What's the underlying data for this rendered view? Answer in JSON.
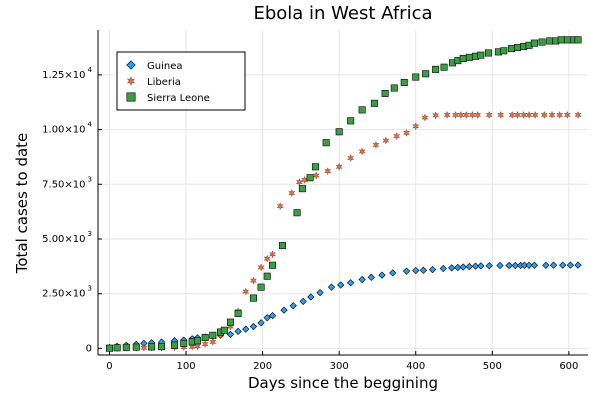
{
  "chart_data": {
    "type": "scatter",
    "title": "Ebola in West Africa",
    "xlabel": "Days since the beggining",
    "ylabel": "Total cases to date",
    "xlim": [
      -15,
      625
    ],
    "ylim": [
      -300,
      14550
    ],
    "xticks": [
      0,
      100,
      200,
      300,
      400,
      500,
      600
    ],
    "xtick_labels": [
      "0",
      "100",
      "200",
      "300",
      "400",
      "500",
      "600"
    ],
    "yticks": [
      0,
      2500,
      5000,
      7500,
      10000,
      12500
    ],
    "ytick_labels": [
      {
        "mant": "0",
        "exp": ""
      },
      {
        "mant": "2.50×10",
        "exp": "3"
      },
      {
        "mant": "5.00×10",
        "exp": "3"
      },
      {
        "mant": "7.50×10",
        "exp": "3"
      },
      {
        "mant": "1.00×10",
        "exp": "4"
      },
      {
        "mant": "1.25×10",
        "exp": "4"
      }
    ],
    "grid": true,
    "legend_position": "top-left",
    "series": [
      {
        "name": "Guinea",
        "marker": "diamond",
        "color": "#2a9df4",
        "points": [
          [
            0,
            40
          ],
          [
            10,
            100
          ],
          [
            22,
            140
          ],
          [
            35,
            190
          ],
          [
            45,
            230
          ],
          [
            55,
            260
          ],
          [
            68,
            290
          ],
          [
            85,
            350
          ],
          [
            97,
            380
          ],
          [
            108,
            440
          ],
          [
            115,
            480
          ],
          [
            125,
            520
          ],
          [
            135,
            560
          ],
          [
            145,
            610
          ],
          [
            158,
            640
          ],
          [
            168,
            780
          ],
          [
            178,
            880
          ],
          [
            188,
            1000
          ],
          [
            198,
            1170
          ],
          [
            206,
            1400
          ],
          [
            213,
            1500
          ],
          [
            228,
            1750
          ],
          [
            240,
            1950
          ],
          [
            253,
            2150
          ],
          [
            263,
            2350
          ],
          [
            275,
            2550
          ],
          [
            290,
            2800
          ],
          [
            302,
            2900
          ],
          [
            315,
            3000
          ],
          [
            330,
            3150
          ],
          [
            342,
            3250
          ],
          [
            356,
            3350
          ],
          [
            370,
            3450
          ],
          [
            388,
            3530
          ],
          [
            400,
            3560
          ],
          [
            410,
            3570
          ],
          [
            422,
            3600
          ],
          [
            436,
            3650
          ],
          [
            447,
            3680
          ],
          [
            455,
            3700
          ],
          [
            462,
            3720
          ],
          [
            470,
            3740
          ],
          [
            478,
            3760
          ],
          [
            485,
            3770
          ],
          [
            496,
            3780
          ],
          [
            510,
            3790
          ],
          [
            522,
            3790
          ],
          [
            530,
            3790
          ],
          [
            537,
            3795
          ],
          [
            542,
            3800
          ],
          [
            548,
            3800
          ],
          [
            555,
            3800
          ],
          [
            570,
            3800
          ],
          [
            580,
            3805
          ],
          [
            592,
            3805
          ],
          [
            602,
            3805
          ],
          [
            612,
            3805
          ]
        ]
      },
      {
        "name": "Liberia",
        "marker": "star",
        "color": "#e26f46",
        "points": [
          [
            0,
            10
          ],
          [
            10,
            15
          ],
          [
            22,
            20
          ],
          [
            35,
            25
          ],
          [
            45,
            30
          ],
          [
            55,
            35
          ],
          [
            68,
            40
          ],
          [
            85,
            50
          ],
          [
            97,
            60
          ],
          [
            108,
            80
          ],
          [
            115,
            100
          ],
          [
            125,
            200
          ],
          [
            135,
            300
          ],
          [
            145,
            600
          ],
          [
            158,
            1000
          ],
          [
            168,
            1700
          ],
          [
            178,
            2600
          ],
          [
            188,
            3100
          ],
          [
            198,
            3700
          ],
          [
            206,
            4100
          ],
          [
            213,
            4300
          ],
          [
            223,
            6500
          ],
          [
            238,
            7100
          ],
          [
            248,
            7600
          ],
          [
            255,
            7700
          ],
          [
            270,
            7900
          ],
          [
            285,
            8100
          ],
          [
            300,
            8300
          ],
          [
            315,
            8700
          ],
          [
            330,
            9000
          ],
          [
            348,
            9300
          ],
          [
            361,
            9500
          ],
          [
            375,
            9700
          ],
          [
            388,
            9850
          ],
          [
            400,
            10150
          ],
          [
            412,
            10550
          ],
          [
            426,
            10650
          ],
          [
            441,
            10670
          ],
          [
            452,
            10670
          ],
          [
            459,
            10670
          ],
          [
            466,
            10670
          ],
          [
            474,
            10670
          ],
          [
            481,
            10670
          ],
          [
            496,
            10670
          ],
          [
            511,
            10670
          ],
          [
            526,
            10670
          ],
          [
            533,
            10670
          ],
          [
            541,
            10670
          ],
          [
            548,
            10670
          ],
          [
            556,
            10670
          ],
          [
            568,
            10670
          ],
          [
            578,
            10670
          ],
          [
            588,
            10670
          ],
          [
            598,
            10670
          ],
          [
            612,
            10670
          ]
        ]
      },
      {
        "name": "Sierra Leone",
        "marker": "square",
        "color": "#3a9e43",
        "points": [
          [
            0,
            10
          ],
          [
            10,
            30
          ],
          [
            22,
            50
          ],
          [
            35,
            60
          ],
          [
            55,
            70
          ],
          [
            68,
            80
          ],
          [
            85,
            150
          ],
          [
            97,
            230
          ],
          [
            108,
            300
          ],
          [
            115,
            350
          ],
          [
            125,
            500
          ],
          [
            135,
            600
          ],
          [
            145,
            750
          ],
          [
            150,
            830
          ],
          [
            158,
            1200
          ],
          [
            168,
            1600
          ],
          [
            188,
            2300
          ],
          [
            198,
            2800
          ],
          [
            206,
            3300
          ],
          [
            213,
            3800
          ],
          [
            226,
            4700
          ],
          [
            245,
            6200
          ],
          [
            252,
            7300
          ],
          [
            262,
            7800
          ],
          [
            269,
            8300
          ],
          [
            283,
            9400
          ],
          [
            300,
            9900
          ],
          [
            315,
            10400
          ],
          [
            330,
            10900
          ],
          [
            346,
            11200
          ],
          [
            360,
            11650
          ],
          [
            372,
            11900
          ],
          [
            385,
            12150
          ],
          [
            400,
            12400
          ],
          [
            413,
            12550
          ],
          [
            426,
            12750
          ],
          [
            437,
            12850
          ],
          [
            448,
            13050
          ],
          [
            455,
            13150
          ],
          [
            462,
            13250
          ],
          [
            470,
            13300
          ],
          [
            478,
            13350
          ],
          [
            485,
            13400
          ],
          [
            495,
            13500
          ],
          [
            508,
            13550
          ],
          [
            515,
            13600
          ],
          [
            525,
            13700
          ],
          [
            533,
            13750
          ],
          [
            541,
            13800
          ],
          [
            548,
            13850
          ],
          [
            555,
            13950
          ],
          [
            565,
            14000
          ],
          [
            575,
            14050
          ],
          [
            583,
            14050
          ],
          [
            590,
            14100
          ],
          [
            598,
            14100
          ],
          [
            606,
            14100
          ],
          [
            612,
            14100
          ]
        ]
      }
    ]
  }
}
